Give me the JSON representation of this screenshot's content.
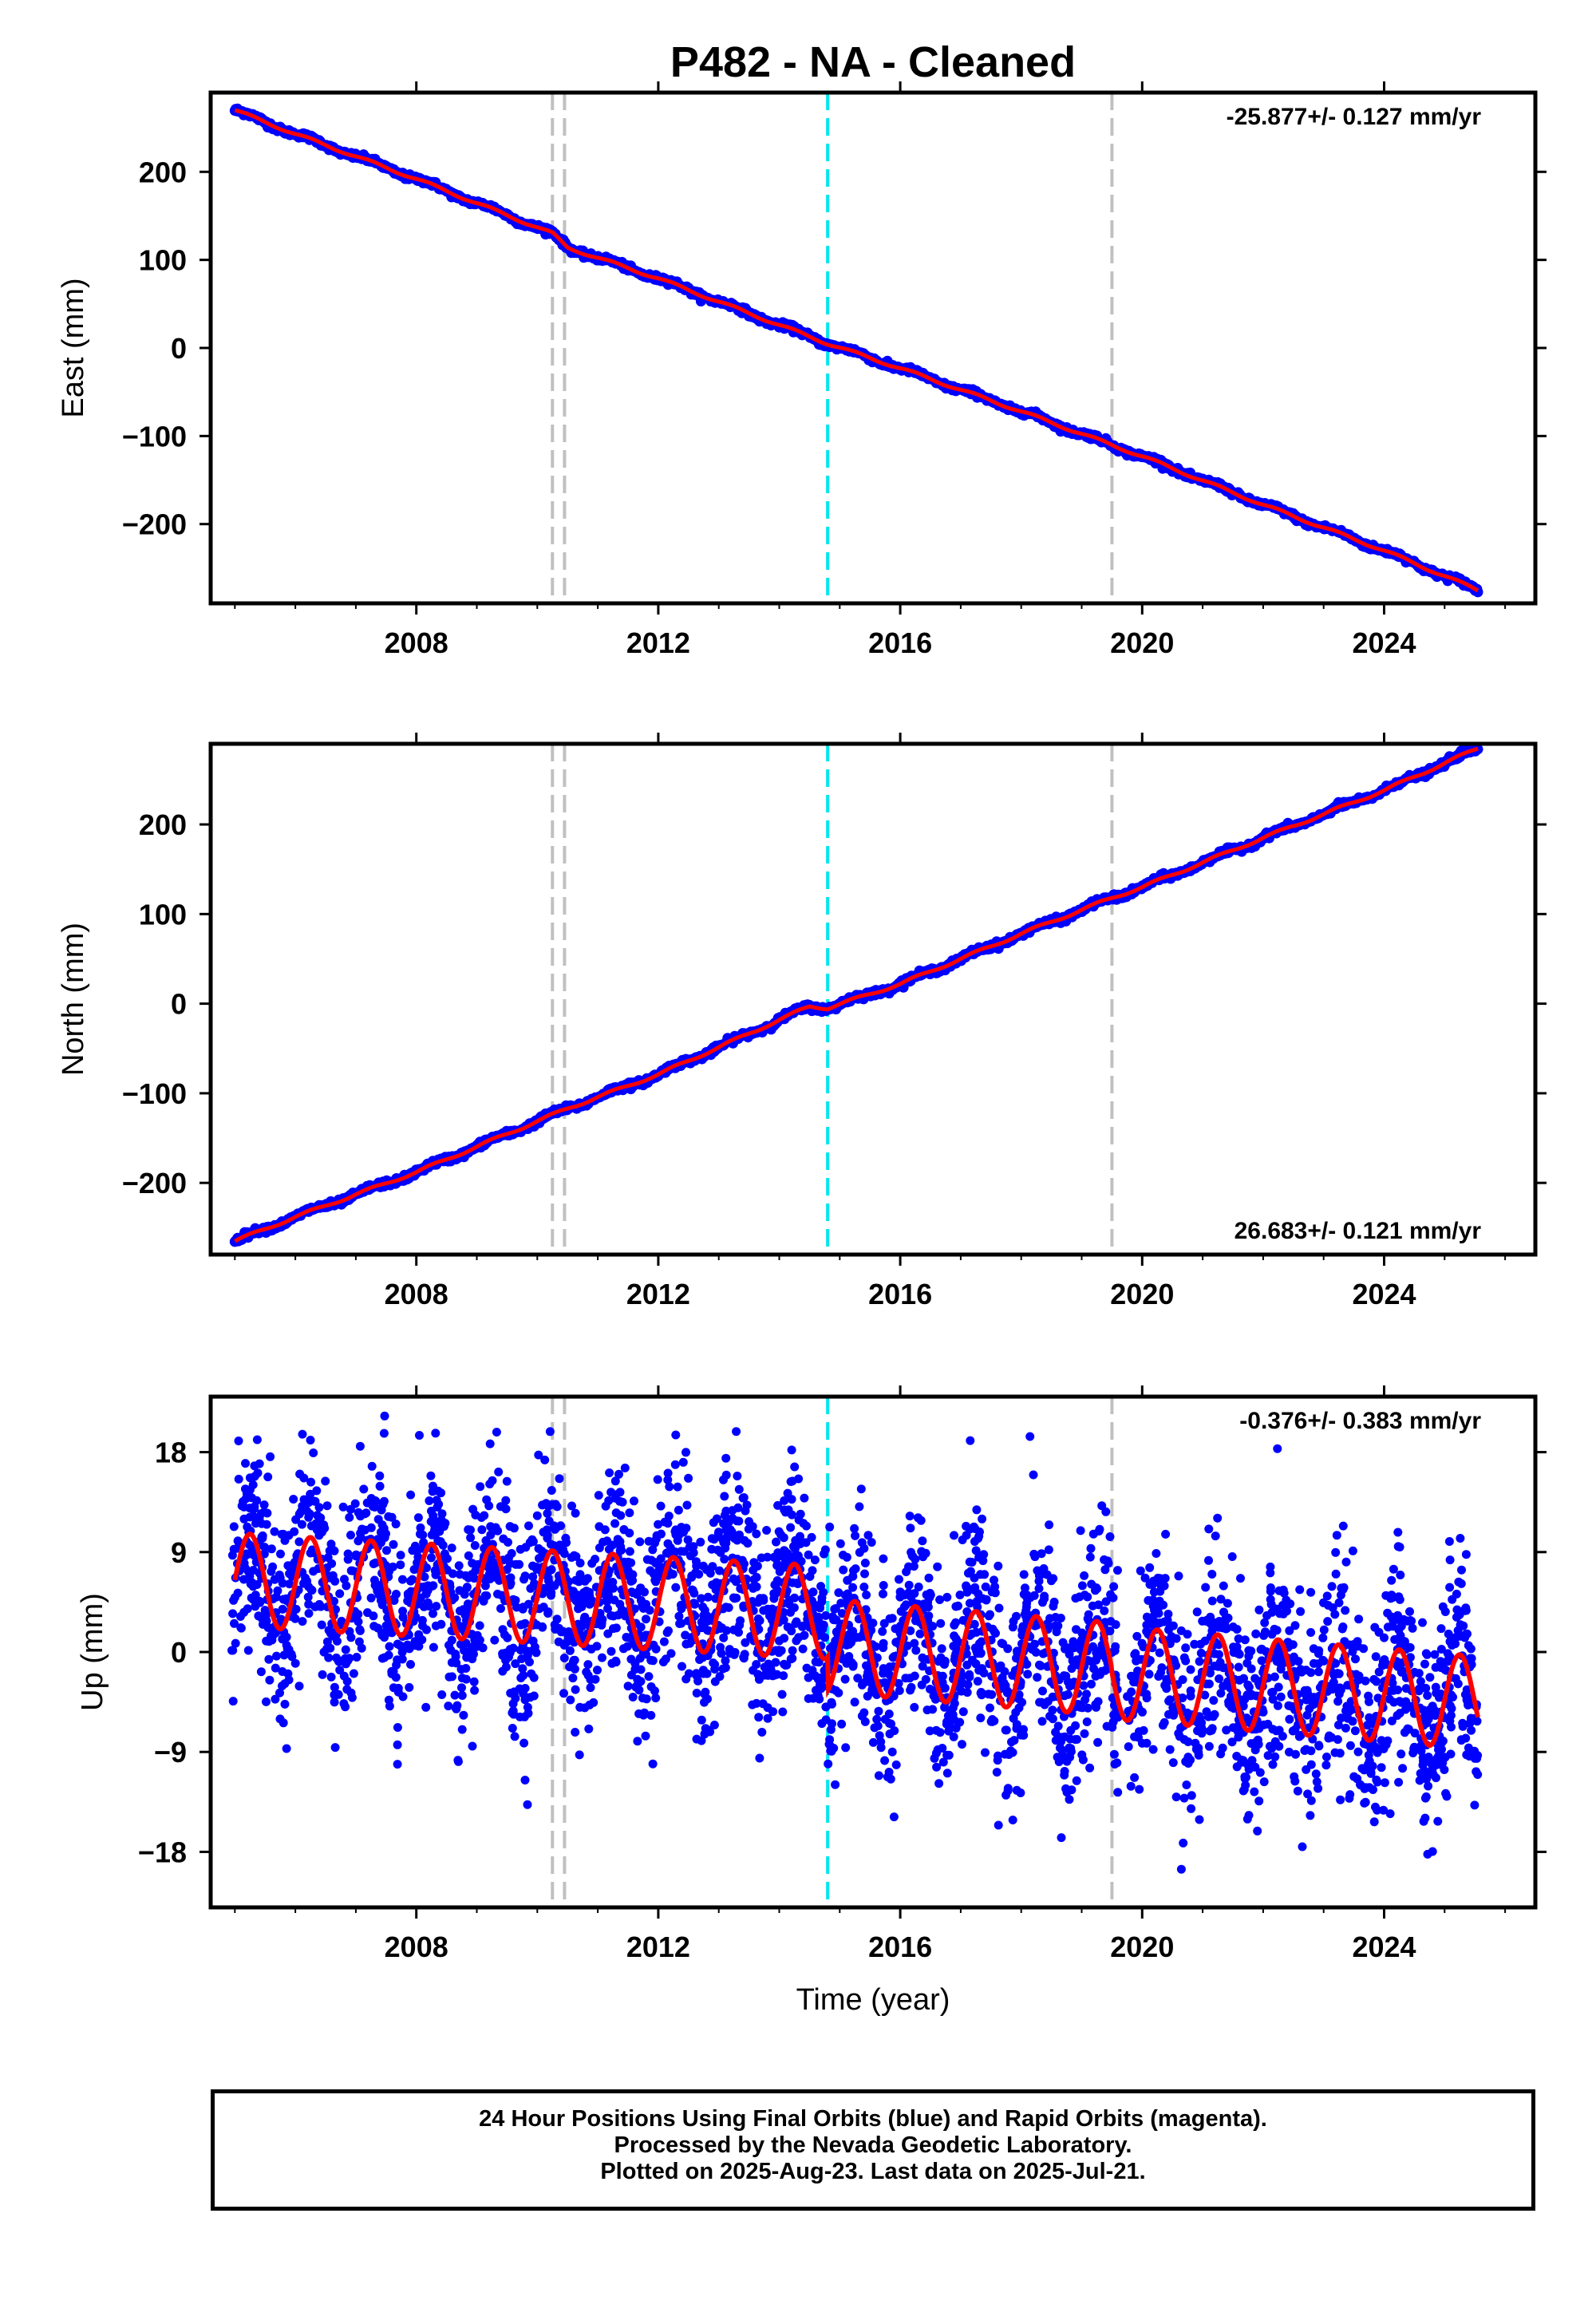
{
  "title": "P482  - NA - Cleaned",
  "caption": [
    "24 Hour Positions Using Final Orbits (blue) and Rapid Orbits (magenta).",
    "Processed by the Nevada Geodetic Laboratory.",
    "Plotted on 2025-Aug-23. Last data on 2025-Jul-21."
  ],
  "colors": {
    "data": "#0000ff",
    "fit": "#ff0000",
    "event_line": "#c0c0c0",
    "equipment_line": "#00e5ee"
  },
  "chart_data": [
    {
      "type": "scatter",
      "ylabel": "East (mm)",
      "xlabel": "",
      "rate_label": "-25.877+/- 0.127 mm/yr",
      "rate_position": "top-right",
      "xlim": [
        2004.6,
        2026.5
      ],
      "ylim": [
        -290,
        290
      ],
      "x_ticks": [
        2008,
        2012,
        2016,
        2020,
        2024
      ],
      "y_ticks": [
        200,
        100,
        0,
        -100,
        -200
      ],
      "y_tick_labels": [
        "200",
        "100",
        "0",
        "−100",
        "−200"
      ],
      "grid": false,
      "event_lines": [
        2010.25,
        2010.45,
        2019.5
      ],
      "equipment_lines": [
        2014.8
      ],
      "series": [
        {
          "x": [
            2005.0,
            2006.0,
            2008.0,
            2010.25,
            2010.5,
            2012.0,
            2014.8,
            2016.0,
            2018.0,
            2020.0,
            2022.0,
            2024.0,
            2025.55
          ],
          "y": [
            270,
            243,
            192,
            130,
            114,
            79,
            5,
            -23,
            -72,
            -123,
            -178,
            -230,
            -275
          ]
        }
      ]
    },
    {
      "type": "scatter",
      "ylabel": "North (mm)",
      "xlabel": "",
      "rate_label": "26.683+/- 0.121 mm/yr",
      "rate_position": "bottom-right",
      "xlim": [
        2004.6,
        2026.5
      ],
      "ylim": [
        -280,
        290
      ],
      "x_ticks": [
        2008,
        2012,
        2016,
        2020,
        2024
      ],
      "y_ticks": [
        200,
        100,
        0,
        -100,
        -200
      ],
      "y_tick_labels": [
        "200",
        "100",
        "0",
        "−100",
        "−200"
      ],
      "grid": false,
      "event_lines": [
        2010.25,
        2010.45,
        2019.5
      ],
      "equipment_lines": [
        2014.8
      ],
      "series": [
        {
          "x": [
            2005.0,
            2006.0,
            2008.0,
            2010.5,
            2012.0,
            2014.5,
            2014.8,
            2016.0,
            2018.0,
            2019.5,
            2020.0,
            2022.0,
            2024.0,
            2025.55
          ],
          "y": [
            -265,
            -238,
            -188,
            -117,
            -79,
            -3,
            -5,
            22,
            78,
            118,
            130,
            185,
            238,
            285
          ]
        }
      ]
    },
    {
      "type": "scatter",
      "ylabel": "Up (mm)",
      "xlabel": "Time (year)",
      "rate_label": "-0.376+/- 0.383 mm/yr",
      "rate_position": "top-right",
      "xlim": [
        2004.6,
        2026.5
      ],
      "ylim": [
        -23,
        23
      ],
      "x_ticks": [
        2008,
        2012,
        2016,
        2020,
        2024
      ],
      "y_ticks": [
        18,
        9,
        0,
        -9,
        -18
      ],
      "y_tick_labels": [
        "18",
        "9",
        "0",
        "−9",
        "−18"
      ],
      "grid": false,
      "event_lines": [
        2010.25,
        2010.45,
        2019.5
      ],
      "equipment_lines": [
        2014.8
      ],
      "trend": {
        "start_year": 2005.0,
        "start_value": 6.5,
        "slope_before": -0.3,
        "offset_at_equipment": -3.0,
        "offset_at_2019_5": -2.5,
        "slope_after": -0.45
      },
      "seasonal": {
        "amplitude": 4.2,
        "period_years": 1.0,
        "peak_phase_years": 0.25
      },
      "scatter_sd": 4.5,
      "data_start": 2004.95,
      "data_end": 2025.55
    }
  ]
}
